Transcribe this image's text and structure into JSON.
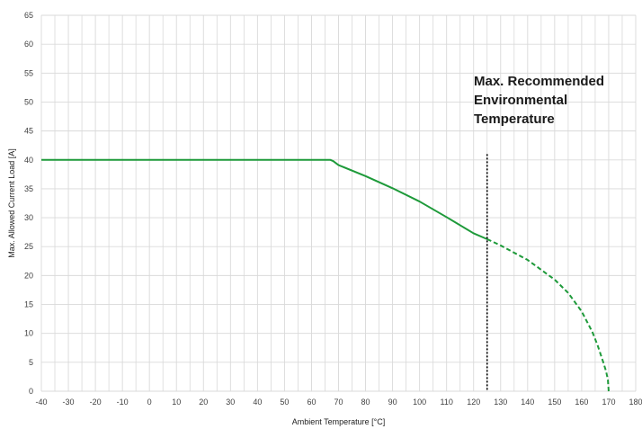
{
  "chart_data": {
    "type": "line",
    "xlabel": "Ambient Temperature [°C]",
    "ylabel": "Max. Allowed Current Load [A]",
    "xlim": [
      -40,
      180
    ],
    "ylim": [
      0,
      65
    ],
    "x_ticks": [
      -40,
      -30,
      -20,
      -10,
      0,
      10,
      20,
      30,
      40,
      50,
      60,
      70,
      80,
      90,
      100,
      110,
      120,
      130,
      140,
      150,
      160,
      170,
      180
    ],
    "y_ticks": [
      0,
      5,
      10,
      15,
      20,
      25,
      30,
      35,
      40,
      45,
      50,
      55,
      60,
      65
    ],
    "x_minor_step": 5,
    "grid": true,
    "colors": {
      "line": "#1e9a3a",
      "marker_line": "#000000",
      "grid": "#d9d9d9"
    },
    "series": [
      {
        "style": "solid",
        "points": [
          [
            -40,
            40
          ],
          [
            67,
            40
          ],
          [
            68,
            39.8
          ],
          [
            70,
            39.1
          ],
          [
            80,
            37.2
          ],
          [
            90,
            35.1
          ],
          [
            100,
            32.8
          ],
          [
            110,
            30.1
          ],
          [
            115,
            28.7
          ],
          [
            120,
            27.3
          ],
          [
            125,
            26.3
          ]
        ]
      },
      {
        "style": "dashed",
        "points": [
          [
            125,
            26.3
          ],
          [
            130,
            25.2
          ],
          [
            140,
            22.7
          ],
          [
            150,
            19.3
          ],
          [
            155,
            17.0
          ],
          [
            160,
            13.8
          ],
          [
            164,
            10.2
          ],
          [
            166,
            7.8
          ],
          [
            168,
            5.0
          ],
          [
            169,
            3.5
          ],
          [
            169.7,
            2.0
          ],
          [
            170,
            0
          ]
        ]
      }
    ],
    "vertical_marker": {
      "x": 125,
      "y_from": 0,
      "y_to": 41,
      "style": "dotted"
    },
    "annotation": {
      "lines": [
        "Max. Recommended",
        "Environmental",
        "Temperature"
      ]
    }
  }
}
